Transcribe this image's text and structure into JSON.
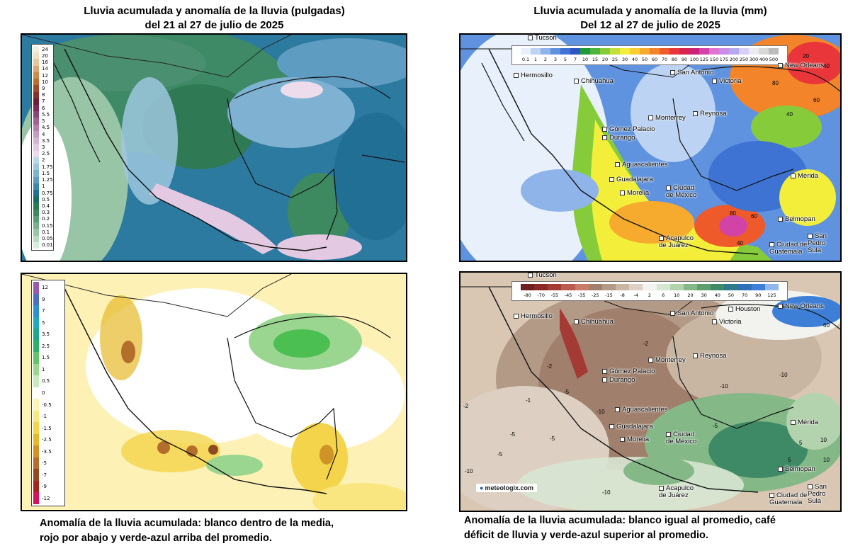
{
  "top_left": {
    "title_line1": "Lluvia acumulada y anomalía de la lluvia (pulgadas)",
    "title_line2": "del 21 al 27 de julio de 2025",
    "legend": [
      {
        "label": "24",
        "color": "#f3eee2"
      },
      {
        "label": "20",
        "color": "#efe2c4"
      },
      {
        "label": "16",
        "color": "#e6c69b"
      },
      {
        "label": "14",
        "color": "#d8a870"
      },
      {
        "label": "12",
        "color": "#c98b4e"
      },
      {
        "label": "10",
        "color": "#b86d35"
      },
      {
        "label": "9",
        "color": "#9c4c2b"
      },
      {
        "label": "8",
        "color": "#86322b"
      },
      {
        "label": "7",
        "color": "#6e1d36"
      },
      {
        "label": "6",
        "color": "#7a2a5c"
      },
      {
        "label": "5.5",
        "color": "#8c4579"
      },
      {
        "label": "5",
        "color": "#a06292"
      },
      {
        "label": "4.5",
        "color": "#b47fab"
      },
      {
        "label": "4",
        "color": "#c69ac1"
      },
      {
        "label": "3.5",
        "color": "#d6b3d3"
      },
      {
        "label": "3",
        "color": "#e3c9e1"
      },
      {
        "label": "2.5",
        "color": "#ecdcec"
      },
      {
        "label": "2",
        "color": "#bcd8e8"
      },
      {
        "label": "1.75",
        "color": "#9ec7df"
      },
      {
        "label": "1.5",
        "color": "#7fb2d2"
      },
      {
        "label": "1.25",
        "color": "#5f9cc2"
      },
      {
        "label": "1",
        "color": "#3f86b0"
      },
      {
        "label": "0.75",
        "color": "#226f95"
      },
      {
        "label": "0.5",
        "color": "#1d6b67"
      },
      {
        "label": "0.4",
        "color": "#2b7a55"
      },
      {
        "label": "0.3",
        "color": "#3e8a60"
      },
      {
        "label": "0.2",
        "color": "#5a9c74"
      },
      {
        "label": "0.15",
        "color": "#78b08c"
      },
      {
        "label": "0.1",
        "color": "#98c5a6"
      },
      {
        "label": "0.05",
        "color": "#b8dbc2"
      },
      {
        "label": "0.01",
        "color": "#d8eedd"
      }
    ]
  },
  "bottom_left": {
    "legend": [
      {
        "label": "12",
        "color": "#9b59a8"
      },
      {
        "label": "9",
        "color": "#4e6fc0"
      },
      {
        "label": "7",
        "color": "#2f8fd0"
      },
      {
        "label": "5",
        "color": "#23a8b9"
      },
      {
        "label": "3.5",
        "color": "#1fa58a"
      },
      {
        "label": "2.5",
        "color": "#2fb06a"
      },
      {
        "label": "1.5",
        "color": "#63c26a"
      },
      {
        "label": "1",
        "color": "#9ad68f"
      },
      {
        "label": "0.5",
        "color": "#c8e9bd"
      },
      {
        "label": "0",
        "color": "#ffffff"
      },
      {
        "label": "-0.5",
        "color": "#fdf5b8"
      },
      {
        "label": "-1",
        "color": "#f9e680"
      },
      {
        "label": "-1.5",
        "color": "#f3d44a"
      },
      {
        "label": "-2.5",
        "color": "#e6b92a"
      },
      {
        "label": "-3.5",
        "color": "#cf9327"
      },
      {
        "label": "-5",
        "color": "#b26e2a"
      },
      {
        "label": "-7",
        "color": "#8e4b22"
      },
      {
        "label": "-9",
        "color": "#a0261f"
      },
      {
        "label": "-12",
        "color": "#d31458"
      }
    ],
    "caption_line1": "Anomalía de la lluvia acumulada: blanco dentro de la media,",
    "caption_line2": "rojo por abajo y verde-azul arriba del promedio."
  },
  "top_right": {
    "title_line1": "Lluvia acumulada y anomalía de la lluvia (mm)",
    "title_line2": "Del 12 al 27 de julio de 2025",
    "legend": [
      {
        "label": "0.1",
        "color": "#e8f0fb"
      },
      {
        "label": "1",
        "color": "#bcd3f3"
      },
      {
        "label": "2",
        "color": "#8eb4ea"
      },
      {
        "label": "3",
        "color": "#5f93df"
      },
      {
        "label": "5",
        "color": "#3e73d3"
      },
      {
        "label": "7",
        "color": "#2d56c5"
      },
      {
        "label": "10",
        "color": "#1f9a3a"
      },
      {
        "label": "15",
        "color": "#4cb53a"
      },
      {
        "label": "20",
        "color": "#86cc3a"
      },
      {
        "label": "25",
        "color": "#c2df3a"
      },
      {
        "label": "30",
        "color": "#f2ee3a"
      },
      {
        "label": "40",
        "color": "#f7cf33"
      },
      {
        "label": "50",
        "color": "#f6aa2e"
      },
      {
        "label": "60",
        "color": "#f38429"
      },
      {
        "label": "70",
        "color": "#ee5a2a"
      },
      {
        "label": "80",
        "color": "#e8363a"
      },
      {
        "label": "90",
        "color": "#d9234f"
      },
      {
        "label": "100",
        "color": "#c9207a"
      },
      {
        "label": "125",
        "color": "#d243a8"
      },
      {
        "label": "150",
        "color": "#e072d2"
      },
      {
        "label": "175",
        "color": "#c98de8"
      },
      {
        "label": "200",
        "color": "#b6a8ee"
      },
      {
        "label": "250",
        "color": "#d8cff5"
      },
      {
        "label": "300",
        "color": "#ecebf2"
      },
      {
        "label": "400",
        "color": "#d8d8d8"
      },
      {
        "label": "500",
        "color": "#bcbcbc"
      }
    ],
    "cities": [
      {
        "name": "Tucson"
      },
      {
        "name": "Hermosillo"
      },
      {
        "name": "Chihuahua"
      },
      {
        "name": "San Antonio"
      },
      {
        "name": "New Orleans"
      },
      {
        "name": "Victoria"
      },
      {
        "name": "Monterrey"
      },
      {
        "name": "Reynosa"
      },
      {
        "name": "Gómez Palacio"
      },
      {
        "name": "Durango"
      },
      {
        "name": "Aguascalientes"
      },
      {
        "name": "Guadalajara"
      },
      {
        "name": "Morelia"
      },
      {
        "name": "Ciudad de México"
      },
      {
        "name": "Mérida"
      },
      {
        "name": "Acapulco de Juárez"
      },
      {
        "name": "Belmopan"
      },
      {
        "name": "San Pedro Sula"
      },
      {
        "name": "Ciudad de Guatemala"
      }
    ],
    "isolines": [
      "20",
      "40",
      "80",
      "80",
      "60",
      "40",
      "60",
      "40"
    ]
  },
  "bottom_right": {
    "legend": [
      {
        "label": "-80",
        "color": "#6e1f1f"
      },
      {
        "label": "-70",
        "color": "#8a2727"
      },
      {
        "label": "-55",
        "color": "#a33a34"
      },
      {
        "label": "-45",
        "color": "#b95b4e"
      },
      {
        "label": "-35",
        "color": "#c87b67"
      },
      {
        "label": "-25",
        "color": "#a0806c"
      },
      {
        "label": "-15",
        "color": "#b39a86"
      },
      {
        "label": "-8",
        "color": "#c8b5a2"
      },
      {
        "label": "-4",
        "color": "#ddd0c2"
      },
      {
        "label": "2",
        "color": "#f2f2ee"
      },
      {
        "label": "6",
        "color": "#d7e6d3"
      },
      {
        "label": "10",
        "color": "#b3d2ae"
      },
      {
        "label": "20",
        "color": "#84b887"
      },
      {
        "label": "30",
        "color": "#5f9e6d"
      },
      {
        "label": "40",
        "color": "#3f8a66"
      },
      {
        "label": "50",
        "color": "#2f7a8a"
      },
      {
        "label": "70",
        "color": "#2f6fb8"
      },
      {
        "label": "90",
        "color": "#3d7fd6"
      },
      {
        "label": "125",
        "color": "#8fb7ec"
      }
    ],
    "cities": [
      {
        "name": "Tucson"
      },
      {
        "name": "Hermosillo"
      },
      {
        "name": "Chihuahua"
      },
      {
        "name": "San Antonio"
      },
      {
        "name": "Houston"
      },
      {
        "name": "New Orleans"
      },
      {
        "name": "Victoria"
      },
      {
        "name": "Monterrey"
      },
      {
        "name": "Reynosa"
      },
      {
        "name": "Gómez Palacio"
      },
      {
        "name": "Durango"
      },
      {
        "name": "Aguascalientes"
      },
      {
        "name": "Guadalajara"
      },
      {
        "name": "Morelia"
      },
      {
        "name": "Ciudad de México"
      },
      {
        "name": "Mérida"
      },
      {
        "name": "Acapulco de Juárez"
      },
      {
        "name": "Belmopan"
      },
      {
        "name": "San Pedro Sula"
      },
      {
        "name": "Ciudad de Guatemala"
      }
    ],
    "isolines": [
      "-2",
      "-2",
      "-5",
      "-1",
      "-10",
      "-5",
      "-2",
      "-10",
      "-5",
      "-5",
      "-10",
      "5",
      "5",
      "-10",
      "10",
      "10",
      "-10",
      "-5",
      "60"
    ],
    "brand": "meteologix.com",
    "caption_line1": "Anomalía de la lluvia acumulada: blanco igual al promedio, café",
    "caption_line2": "déficit de lluvia y verde-azul superior al promedio."
  }
}
